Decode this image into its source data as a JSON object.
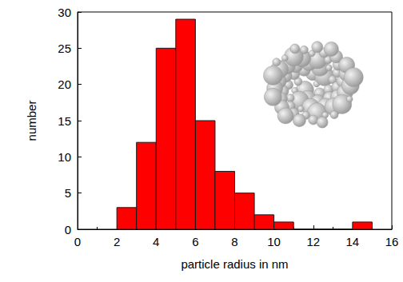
{
  "chart_data": {
    "type": "histogram",
    "x_label": "particle radius in nm",
    "y_label": "number",
    "bins": [
      2,
      3,
      4,
      5,
      6,
      7,
      8,
      9,
      10,
      11,
      12,
      13,
      14,
      15
    ],
    "values": [
      3,
      12,
      25,
      29,
      15,
      8,
      5,
      2,
      1,
      0,
      0,
      0,
      1
    ],
    "color": "#ff0000",
    "xlim": [
      0,
      16
    ],
    "xticks": [
      0,
      2,
      4,
      6,
      8,
      10,
      12,
      14,
      16
    ],
    "ylim": [
      0,
      30
    ],
    "yticks": [
      0,
      5,
      10,
      15,
      20,
      25,
      30
    ],
    "grid": false
  }
}
